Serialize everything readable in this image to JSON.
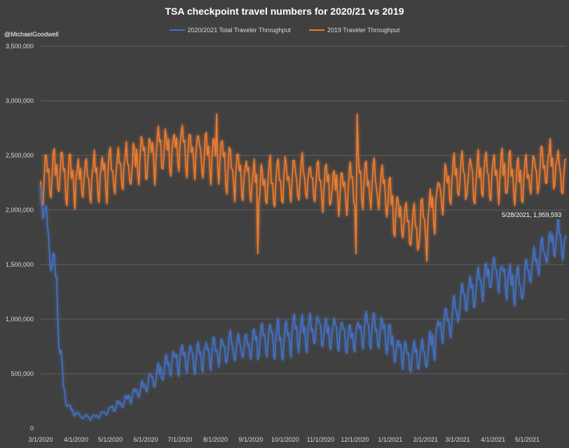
{
  "chart_data": {
    "type": "line",
    "title": "TSA checkpoint travel numbers for 2020/21 vs 2019",
    "credit": "@MichaelGoodwell",
    "xlabel": "",
    "ylabel": "",
    "ylim": [
      0,
      3500000
    ],
    "y_ticks": [
      0,
      500000,
      1000000,
      1500000,
      2000000,
      2500000,
      3000000,
      3500000
    ],
    "y_tick_labels": [
      "0",
      "500,000",
      "1,000,000",
      "1,500,000",
      "2,000,000",
      "2,500,000",
      "3,000,000",
      "3,500,000"
    ],
    "x_tick_labels": [
      "3/1/2020",
      "4/1/2020",
      "5/1/2020",
      "6/1/2020",
      "7/1/2020",
      "8/1/2020",
      "9/1/2020",
      "10/1/2020",
      "11/1/2020",
      "12/1/2020",
      "1/1/2021",
      "2/1/2021",
      "3/1/2021",
      "4/1/2021",
      "5/1/2021"
    ],
    "x_tick_days": [
      0,
      31,
      61,
      92,
      122,
      153,
      184,
      214,
      245,
      275,
      306,
      337,
      365,
      396,
      426
    ],
    "x_range_days": [
      0,
      460
    ],
    "grid": true,
    "legend_position": "top-center",
    "annotation": {
      "text": "5/28/2021, 1,959,593",
      "day": 453,
      "value": 1959593
    },
    "series": [
      {
        "name": "2020/2021 Total Traveler Throughput",
        "color": "#4472c4",
        "weekly_anchors": [
          [
            0,
            2200000
          ],
          [
            7,
            1700000
          ],
          [
            14,
            1300000
          ],
          [
            17,
            700000
          ],
          [
            20,
            350000
          ],
          [
            24,
            200000
          ],
          [
            28,
            150000
          ],
          [
            35,
            110000
          ],
          [
            42,
            95000
          ],
          [
            49,
            105000
          ],
          [
            56,
            140000
          ],
          [
            63,
            180000
          ],
          [
            70,
            220000
          ],
          [
            77,
            270000
          ],
          [
            84,
            320000
          ],
          [
            91,
            380000
          ],
          [
            98,
            440000
          ],
          [
            105,
            500000
          ],
          [
            112,
            560000
          ],
          [
            122,
            620000
          ],
          [
            135,
            650000
          ],
          [
            150,
            690000
          ],
          [
            165,
            720000
          ],
          [
            180,
            740000
          ],
          [
            200,
            790000
          ],
          [
            215,
            820000
          ],
          [
            230,
            860000
          ],
          [
            245,
            880000
          ],
          [
            260,
            860000
          ],
          [
            270,
            820000
          ],
          [
            280,
            870000
          ],
          [
            290,
            890000
          ],
          [
            300,
            860000
          ],
          [
            310,
            720000
          ],
          [
            320,
            650000
          ],
          [
            330,
            640000
          ],
          [
            340,
            700000
          ],
          [
            350,
            900000
          ],
          [
            360,
            1000000
          ],
          [
            370,
            1150000
          ],
          [
            380,
            1250000
          ],
          [
            390,
            1380000
          ],
          [
            400,
            1400000
          ],
          [
            410,
            1320000
          ],
          [
            420,
            1280000
          ],
          [
            430,
            1450000
          ],
          [
            440,
            1580000
          ],
          [
            450,
            1700000
          ],
          [
            455,
            1750000
          ],
          [
            460,
            1620000
          ]
        ],
        "weekly_amplitude": 170000
      },
      {
        "name": "2019 Traveler Throughput",
        "color": "#ed7d31",
        "weekly_anchors": [
          [
            0,
            2250000
          ],
          [
            10,
            2300000
          ],
          [
            20,
            2300000
          ],
          [
            30,
            2270000
          ],
          [
            45,
            2260000
          ],
          [
            60,
            2300000
          ],
          [
            75,
            2350000
          ],
          [
            90,
            2450000
          ],
          [
            110,
            2520000
          ],
          [
            125,
            2550000
          ],
          [
            140,
            2500000
          ],
          [
            155,
            2450000
          ],
          [
            165,
            2350000
          ],
          [
            180,
            2250000
          ],
          [
            195,
            2200000
          ],
          [
            210,
            2250000
          ],
          [
            225,
            2250000
          ],
          [
            240,
            2230000
          ],
          [
            255,
            2200000
          ],
          [
            270,
            2150000
          ],
          [
            280,
            2250000
          ],
          [
            290,
            2200000
          ],
          [
            300,
            2150000
          ],
          [
            310,
            1950000
          ],
          [
            320,
            1850000
          ],
          [
            330,
            1820000
          ],
          [
            340,
            1900000
          ],
          [
            350,
            2150000
          ],
          [
            360,
            2250000
          ],
          [
            375,
            2280000
          ],
          [
            390,
            2300000
          ],
          [
            405,
            2300000
          ],
          [
            420,
            2250000
          ],
          [
            435,
            2330000
          ],
          [
            445,
            2400000
          ],
          [
            455,
            2320000
          ],
          [
            460,
            2300000
          ]
        ],
        "weekly_amplitude": 230000
      }
    ]
  }
}
